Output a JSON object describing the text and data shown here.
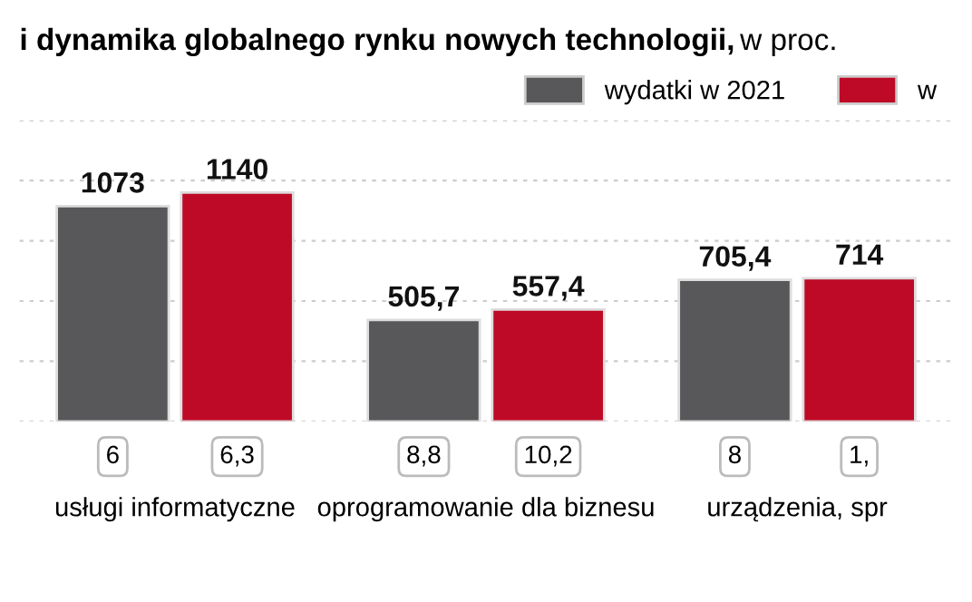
{
  "chart_data": {
    "type": "bar",
    "title": "i dynamika globalnego rynku nowych technologii,",
    "subtitle": "w proc.",
    "categories": [
      "usługi informatyczne",
      "oprogramowanie dla biznesu",
      "urządzenia, spr"
    ],
    "series": [
      {
        "name": "wydatki w 2021",
        "color": "#58585a",
        "values": [
          1073,
          505.7,
          705.4
        ],
        "value_labels": [
          "1073",
          "505,7",
          "705,4"
        ]
      },
      {
        "name": "w",
        "color": "#be0a26",
        "values": [
          1140,
          557.4,
          714
        ],
        "value_labels": [
          "1140",
          "557,4",
          "714"
        ]
      }
    ],
    "annotations": [
      "6",
      "6,3",
      "8,8",
      "10,2",
      "8",
      "1,"
    ],
    "ylim": [
      0,
      1500
    ],
    "yticks": [
      {
        "value": 0,
        "label": null
      },
      {
        "value": 300,
        "label": null
      },
      {
        "value": 600,
        "label": null
      },
      {
        "value": 900,
        "label": null
      },
      {
        "value": 1200,
        "label": null
      },
      {
        "value": 1500,
        "label": null
      }
    ],
    "tick_labels": "x",
    "grid": "y",
    "legend": "top right"
  }
}
